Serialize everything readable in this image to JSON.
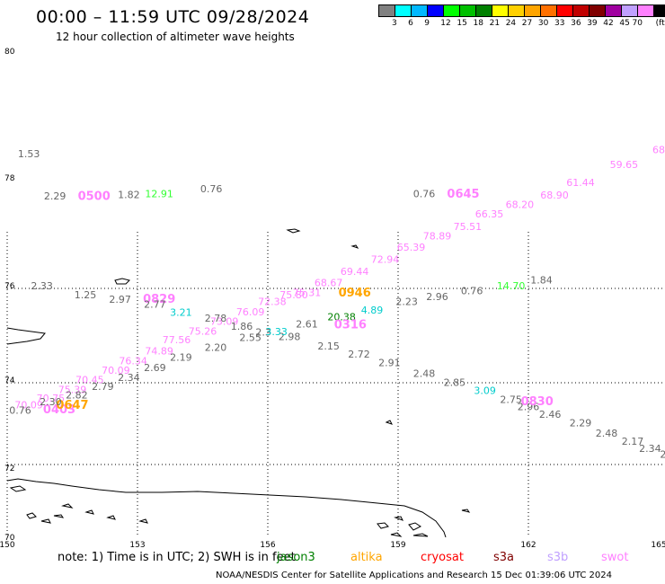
{
  "header": {
    "title": "00:00 – 11:59 UTC 09/28/2024",
    "subtitle": "12 hour collection of altimeter wave heights"
  },
  "colorbar": {
    "colors": [
      "#808080",
      "#00ffff",
      "#00b8ff",
      "#0000ff",
      "#00ff00",
      "#00c000",
      "#008000",
      "#ffff00",
      "#ffd000",
      "#ffa500",
      "#ff7000",
      "#ff0000",
      "#c00000",
      "#800000",
      "#a000a0",
      "#c0a0ff",
      "#ff80ff",
      "#000000"
    ],
    "labels": [
      "3",
      "6",
      "9",
      "12",
      "15",
      "18",
      "21",
      "24",
      "27",
      "30",
      "33",
      "36",
      "39",
      "42",
      "45",
      "70",
      "(ft)"
    ]
  },
  "map": {
    "lat_labels": [
      "80",
      "78",
      "76",
      "74",
      "72",
      "70"
    ],
    "lon_labels": [
      "150",
      "153",
      "156",
      "159",
      "162",
      "165"
    ],
    "lat_range": [
      70,
      80
    ],
    "lon_range": [
      150,
      165
    ],
    "observations": [
      {
        "text": "1.53",
        "color": "#666666",
        "lon": 150.5,
        "lat": 77.82
      },
      {
        "text": "2.29",
        "color": "#666666",
        "lon": 151.1,
        "lat": 76.95
      },
      {
        "text": "0500",
        "color": "#ff80ff",
        "lon": 152.0,
        "lat": 76.94,
        "big": true
      },
      {
        "text": "1.82",
        "color": "#666666",
        "lon": 152.8,
        "lat": 76.98
      },
      {
        "text": "12.91",
        "color": "#33ff33",
        "lon": 153.5,
        "lat": 77.0
      },
      {
        "text": "0.76",
        "color": "#666666",
        "lon": 154.7,
        "lat": 77.1
      },
      {
        "text": "0.76",
        "color": "#666666",
        "lon": 159.6,
        "lat": 77.0
      },
      {
        "text": "0645",
        "color": "#ff80ff",
        "lon": 160.5,
        "lat": 76.99,
        "big": true
      },
      {
        "text": "68",
        "color": "#ff80ff",
        "lon": 165.0,
        "lat": 77.9
      },
      {
        "text": "59.65",
        "color": "#ff80ff",
        "lon": 164.2,
        "lat": 77.6
      },
      {
        "text": "61.44",
        "color": "#ff80ff",
        "lon": 163.2,
        "lat": 77.23
      },
      {
        "text": "68.90",
        "color": "#ff80ff",
        "lon": 162.6,
        "lat": 76.97
      },
      {
        "text": "68.20",
        "color": "#ff80ff",
        "lon": 161.8,
        "lat": 76.77
      },
      {
        "text": "66.35",
        "color": "#ff80ff",
        "lon": 161.1,
        "lat": 76.58
      },
      {
        "text": "75.51",
        "color": "#ff80ff",
        "lon": 160.6,
        "lat": 76.32
      },
      {
        "text": "78.89",
        "color": "#ff80ff",
        "lon": 159.9,
        "lat": 76.13
      },
      {
        "text": "65.39",
        "color": "#ff80ff",
        "lon": 159.3,
        "lat": 75.9
      },
      {
        "text": "72.94",
        "color": "#ff80ff",
        "lon": 158.7,
        "lat": 75.65
      },
      {
        "text": "69.44",
        "color": "#ff80ff",
        "lon": 158.0,
        "lat": 75.4
      },
      {
        "text": "68.67",
        "color": "#ff80ff",
        "lon": 157.4,
        "lat": 75.17
      },
      {
        "text": "75.31",
        "color": "#ff80ff",
        "lon": 156.9,
        "lat": 74.96
      },
      {
        "text": "75.80",
        "color": "#ff80ff",
        "lon": 156.6,
        "lat": 74.92
      },
      {
        "text": "0946",
        "color": "#ffa500",
        "lon": 158.0,
        "lat": 74.95,
        "big": true
      },
      {
        "text": "72.38",
        "color": "#ff80ff",
        "lon": 156.1,
        "lat": 74.78
      },
      {
        "text": "76.09",
        "color": "#ff80ff",
        "lon": 155.6,
        "lat": 74.57
      },
      {
        "text": "73.09",
        "color": "#ff80ff",
        "lon": 155.0,
        "lat": 74.37
      },
      {
        "text": "75.26",
        "color": "#ff80ff",
        "lon": 154.5,
        "lat": 74.17
      },
      {
        "text": "77.56",
        "color": "#ff80ff",
        "lon": 153.9,
        "lat": 73.99
      },
      {
        "text": "74.89",
        "color": "#ff80ff",
        "lon": 153.5,
        "lat": 73.76
      },
      {
        "text": "76.34",
        "color": "#ff80ff",
        "lon": 152.9,
        "lat": 73.56
      },
      {
        "text": "70.09",
        "color": "#ff80ff",
        "lon": 152.5,
        "lat": 73.36
      },
      {
        "text": "70.45",
        "color": "#ff80ff",
        "lon": 151.9,
        "lat": 73.17
      },
      {
        "text": "75.39",
        "color": "#ff80ff",
        "lon": 151.5,
        "lat": 72.97
      },
      {
        "text": "70.75",
        "color": "#ff80ff",
        "lon": 151.0,
        "lat": 72.79
      },
      {
        "text": "70.09",
        "color": "#ff80ff",
        "lon": 150.5,
        "lat": 72.65
      },
      {
        "text": "0403",
        "color": "#ff80ff",
        "lon": 151.2,
        "lat": 72.55,
        "big": true
      },
      {
        "text": "0647",
        "color": "#ffa500",
        "lon": 151.5,
        "lat": 72.64,
        "big": true
      },
      {
        "text": "2.30",
        "color": "#666666",
        "lon": 151.0,
        "lat": 72.72
      },
      {
        "text": "2.82",
        "color": "#666666",
        "lon": 151.6,
        "lat": 72.86
      },
      {
        "text": "0.76",
        "color": "#666666",
        "lon": 150.3,
        "lat": 72.54
      },
      {
        "text": "2.79",
        "color": "#666666",
        "lon": 152.2,
        "lat": 73.03
      },
      {
        "text": "2.34",
        "color": "#666666",
        "lon": 152.8,
        "lat": 73.22
      },
      {
        "text": "2.69",
        "color": "#666666",
        "lon": 153.4,
        "lat": 73.42
      },
      {
        "text": "2.19",
        "color": "#666666",
        "lon": 154.0,
        "lat": 73.63
      },
      {
        "text": "2.20",
        "color": "#666666",
        "lon": 154.8,
        "lat": 73.84
      },
      {
        "text": "2.55",
        "color": "#666666",
        "lon": 155.6,
        "lat": 74.04
      },
      {
        "text": "2.98",
        "color": "#666666",
        "lon": 156.5,
        "lat": 74.06
      },
      {
        "text": "2.15",
        "color": "#666666",
        "lon": 157.4,
        "lat": 73.86
      },
      {
        "text": "2.72",
        "color": "#666666",
        "lon": 158.1,
        "lat": 73.7
      },
      {
        "text": "2.91",
        "color": "#666666",
        "lon": 158.8,
        "lat": 73.52
      },
      {
        "text": "2.48",
        "color": "#666666",
        "lon": 159.6,
        "lat": 73.3
      },
      {
        "text": "2.85",
        "color": "#666666",
        "lon": 160.3,
        "lat": 73.11
      },
      {
        "text": "3.09",
        "color": "#00cccc",
        "lon": 161.0,
        "lat": 72.95
      },
      {
        "text": "2.75",
        "color": "#666666",
        "lon": 161.6,
        "lat": 72.76
      },
      {
        "text": "2.96",
        "color": "#666666",
        "lon": 162.0,
        "lat": 72.62
      },
      {
        "text": "0830",
        "color": "#ff80ff",
        "lon": 162.2,
        "lat": 72.72,
        "big": true
      },
      {
        "text": "2.46",
        "color": "#666666",
        "lon": 162.5,
        "lat": 72.46
      },
      {
        "text": "2.29",
        "color": "#666666",
        "lon": 163.2,
        "lat": 72.28
      },
      {
        "text": "2.48",
        "color": "#666666",
        "lon": 163.8,
        "lat": 72.07
      },
      {
        "text": "2.17",
        "color": "#666666",
        "lon": 164.4,
        "lat": 71.9
      },
      {
        "text": "2.34",
        "color": "#666666",
        "lon": 164.8,
        "lat": 71.76
      },
      {
        "text": "2",
        "color": "#666666",
        "lon": 165.1,
        "lat": 71.64
      },
      {
        "text": "2.33",
        "color": "#666666",
        "lon": 150.8,
        "lat": 75.1
      },
      {
        "text": "1.25",
        "color": "#666666",
        "lon": 151.8,
        "lat": 74.92
      },
      {
        "text": "2.97",
        "color": "#666666",
        "lon": 152.6,
        "lat": 74.82
      },
      {
        "text": "0829",
        "color": "#ff80ff",
        "lon": 153.5,
        "lat": 74.82,
        "big": true
      },
      {
        "text": "2.77",
        "color": "#666666",
        "lon": 153.4,
        "lat": 74.72
      },
      {
        "text": "3.21",
        "color": "#00cccc",
        "lon": 154.0,
        "lat": 74.56
      },
      {
        "text": "2.78",
        "color": "#666666",
        "lon": 154.8,
        "lat": 74.44
      },
      {
        "text": "1.86",
        "color": "#666666",
        "lon": 155.4,
        "lat": 74.27
      },
      {
        "text": "2.3",
        "color": "#666666",
        "lon": 155.9,
        "lat": 74.15
      },
      {
        "text": "3.33",
        "color": "#00cccc",
        "lon": 156.2,
        "lat": 74.16
      },
      {
        "text": "2.61",
        "color": "#666666",
        "lon": 156.9,
        "lat": 74.32
      },
      {
        "text": "20.38",
        "color": "#008000",
        "lon": 157.7,
        "lat": 74.46
      },
      {
        "text": "0316",
        "color": "#ff80ff",
        "lon": 157.9,
        "lat": 74.3,
        "big": true
      },
      {
        "text": "4.89",
        "color": "#00cccc",
        "lon": 158.4,
        "lat": 74.6
      },
      {
        "text": "2.23",
        "color": "#666666",
        "lon": 159.2,
        "lat": 74.78
      },
      {
        "text": "2.96",
        "color": "#666666",
        "lon": 159.9,
        "lat": 74.88
      },
      {
        "text": "0.76",
        "color": "#666666",
        "lon": 160.7,
        "lat": 75.0
      },
      {
        "text": "14.70",
        "color": "#33ff33",
        "lon": 161.6,
        "lat": 75.1
      },
      {
        "text": "1.84",
        "color": "#666666",
        "lon": 162.3,
        "lat": 75.22
      }
    ]
  },
  "note": {
    "text": "note:  1) Time is in UTC; 2) SWH is in feet",
    "legend": [
      {
        "name": "jason3",
        "color": "#008000"
      },
      {
        "name": "altika",
        "color": "#ffa500"
      },
      {
        "name": "cryosat",
        "color": "#ff0000"
      },
      {
        "name": "s3a",
        "color": "#800000"
      },
      {
        "name": "s3b",
        "color": "#c0a0ff"
      },
      {
        "name": "swot",
        "color": "#ff80ff"
      }
    ]
  },
  "footer": {
    "text": "NOAA/NESDIS Center for Satellite Applications and Research    15 Dec 01:39:06 UTC 2024"
  }
}
